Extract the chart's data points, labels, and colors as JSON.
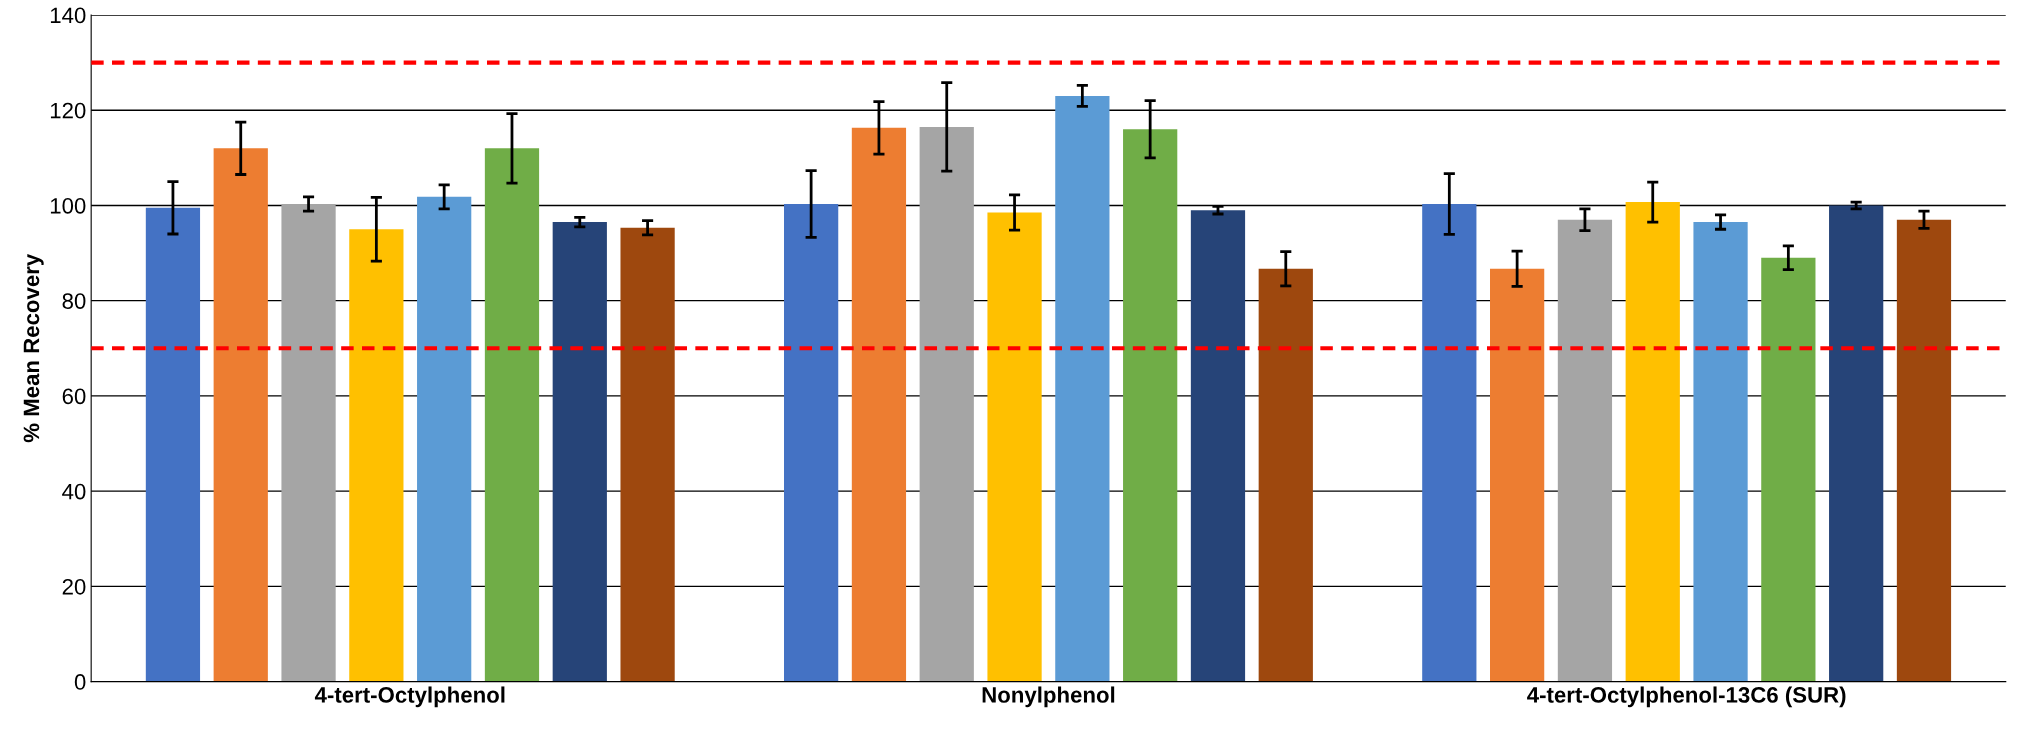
{
  "chart_data": {
    "type": "bar",
    "ylabel": "% Mean Recovery",
    "categories": [
      "4-tert-Octylphenol",
      "Nonylphenol",
      "4-tert-Octylphenol-13C6 (SUR)"
    ],
    "series": [
      {
        "color": "#4472c4",
        "values": [
          99.5,
          100.3,
          100.3
        ],
        "errors": [
          5.5,
          7,
          6.4
        ]
      },
      {
        "color": "#ed7d31",
        "values": [
          112,
          116.3,
          86.7
        ],
        "errors": [
          5.5,
          5.5,
          3.7
        ]
      },
      {
        "color": "#a5a5a5",
        "values": [
          100.3,
          116.5,
          97
        ],
        "errors": [
          1.5,
          9.3,
          2.3
        ]
      },
      {
        "color": "#ffc000",
        "values": [
          95,
          98.5,
          100.7
        ],
        "errors": [
          6.7,
          3.7,
          4.2
        ]
      },
      {
        "color": "#5b9bd5",
        "values": [
          101.8,
          123,
          96.5
        ],
        "errors": [
          2.5,
          2.2,
          1.5
        ]
      },
      {
        "color": "#70ad47",
        "values": [
          112,
          116,
          89
        ],
        "errors": [
          7.3,
          6,
          2.5
        ]
      },
      {
        "color": "#264478",
        "values": [
          96.5,
          99,
          100
        ],
        "errors": [
          1,
          0.8,
          0.7
        ]
      },
      {
        "color": "#9e480e",
        "values": [
          95.3,
          86.7,
          97
        ],
        "errors": [
          1.5,
          3.6,
          1.8
        ]
      }
    ],
    "ylim": [
      0,
      140
    ],
    "yticks": [
      0,
      20,
      40,
      60,
      80,
      100,
      120,
      140
    ],
    "grid": "y",
    "legend": false,
    "ref_lines": [
      {
        "axis": "y",
        "value": 130,
        "color": "#ff0000",
        "line_style": "dashed"
      },
      {
        "axis": "y",
        "value": 70,
        "color": "#ff0000",
        "line_style": "dashed"
      }
    ]
  }
}
